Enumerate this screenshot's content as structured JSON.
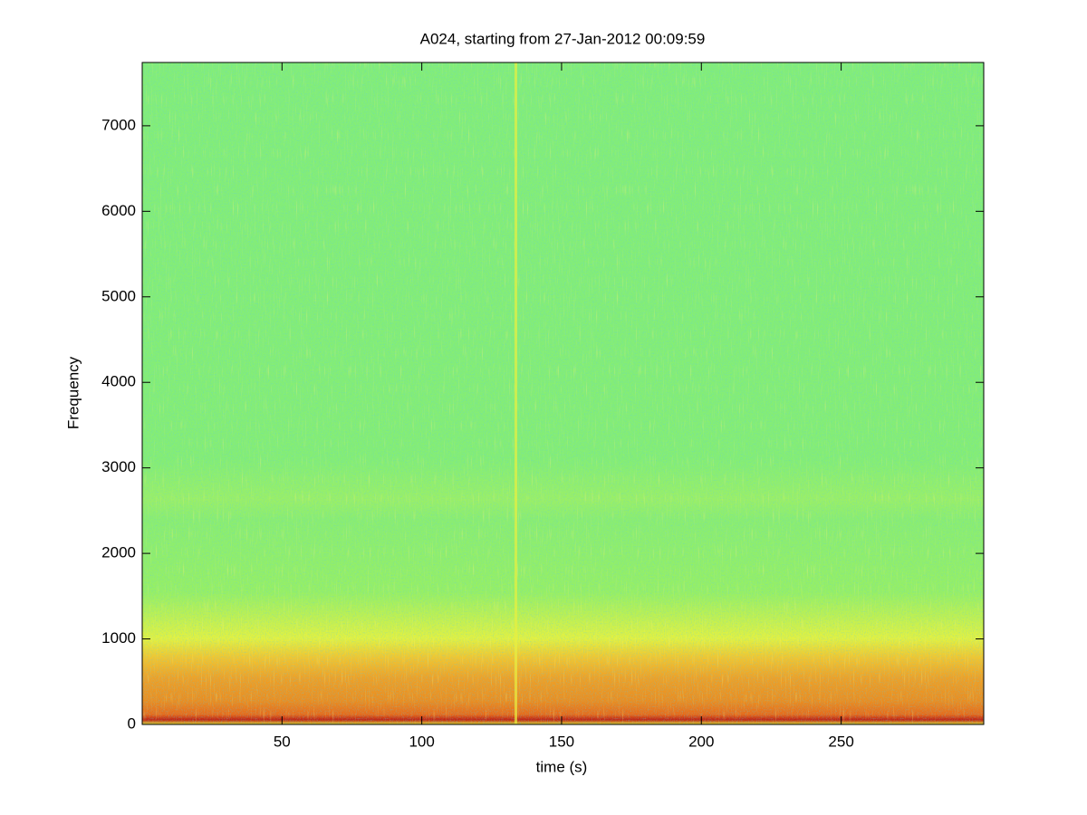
{
  "chart_data": {
    "type": "spectrogram",
    "title": "A024, starting from 27-Jan-2012 00:09:59",
    "x_label": "time (s)",
    "y_label": "Frequency",
    "xlim": [
      0,
      301
    ],
    "xticks": [
      50,
      100,
      150,
      200,
      250
    ],
    "ylim": [
      0,
      7740
    ],
    "yticks": [
      0,
      1000,
      2000,
      3000,
      4000,
      5000,
      6000,
      7000
    ],
    "grid": false
  }
}
